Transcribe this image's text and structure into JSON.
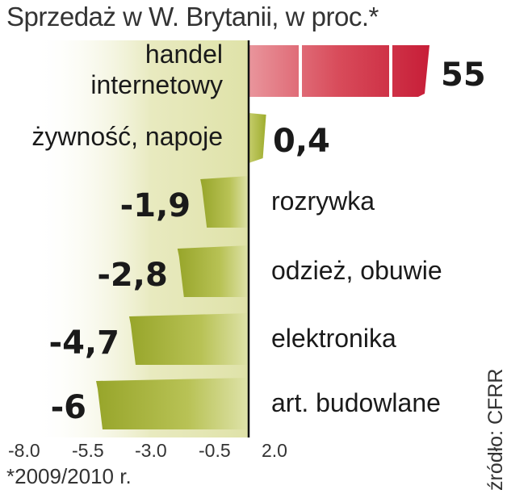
{
  "title": "Sprzedaż w W. Brytanii, w proc.*",
  "footnote": "*2009/2010 r.",
  "source": "źródło: CFRR",
  "colors": {
    "positive_bar": "#d42a45",
    "negative_bar": "#a9b535",
    "highlight_band": "#e4e6b4",
    "value_red": "#c8102e"
  },
  "chart_data": {
    "type": "bar",
    "orientation": "horizontal",
    "categories": [
      "handel internetowy",
      "żywność, napoje",
      "rozrywka",
      "odzież, obuwie",
      "elektronika",
      "art. budowlane"
    ],
    "category_lines": [
      [
        "handel",
        "internetowy"
      ],
      [
        "żywność, napoje"
      ],
      [
        "rozrywka"
      ],
      [
        "odzież, obuwie"
      ],
      [
        "elektronika"
      ],
      [
        "art. budowlane"
      ]
    ],
    "values": [
      55,
      0.4,
      -1.9,
      -2.8,
      -4.7,
      -6
    ],
    "value_labels": [
      "55",
      "0,4",
      "-1,9",
      "-2,8",
      "-4,7",
      "-6"
    ],
    "axis_ticks": [
      "-8.0",
      "-5.5",
      "-3.0",
      "-0.5",
      "2.0"
    ],
    "axis_tick_values": [
      -8.0,
      -5.5,
      -3.0,
      -0.5,
      2.0
    ],
    "xlim": [
      -8.0,
      2.0
    ],
    "axis_break": true,
    "grid": false
  }
}
